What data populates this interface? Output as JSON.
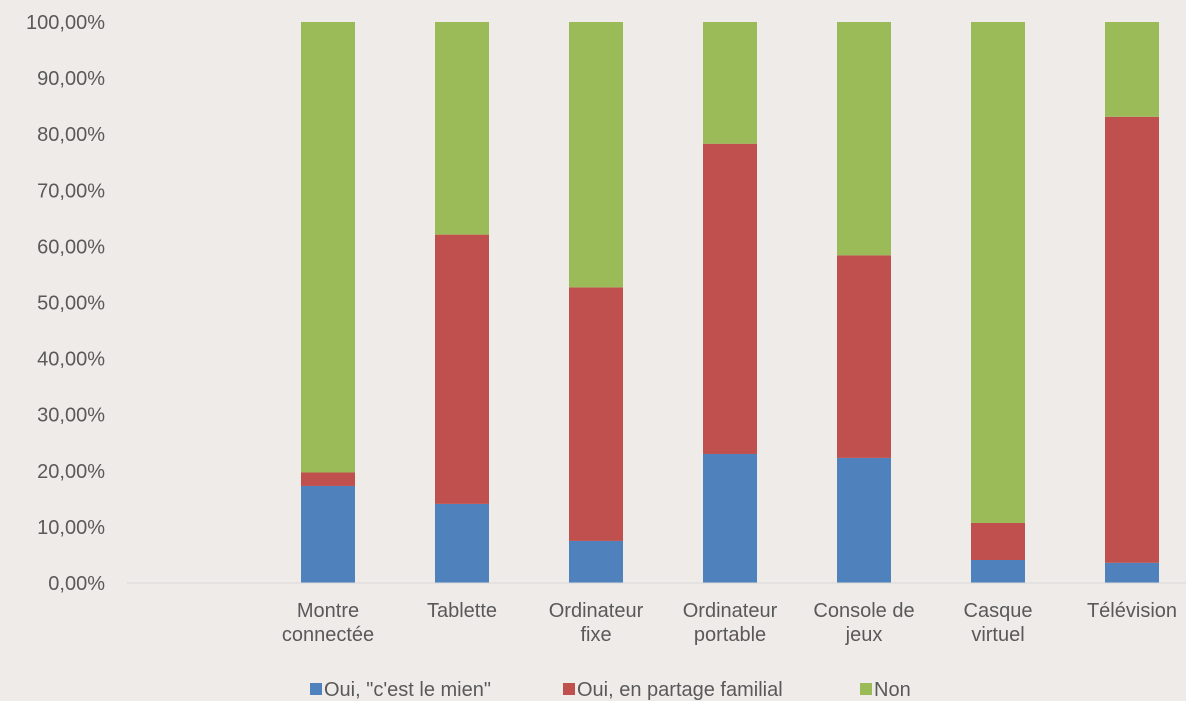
{
  "chart_data": {
    "type": "bar",
    "stacked": true,
    "categories": [
      [
        "Montre",
        "connectée"
      ],
      [
        "Tablette"
      ],
      [
        "Ordinateur",
        "fixe"
      ],
      [
        "Ordinateur",
        "portable"
      ],
      [
        "Console de",
        "jeux"
      ],
      [
        "Casque",
        "virtuel"
      ],
      [
        "Télévision"
      ]
    ],
    "series": [
      {
        "name": "Oui, \"c'est le mien\"",
        "color": "#4f81bd",
        "values": [
          17.3,
          14.1,
          7.5,
          23.0,
          22.3,
          4.1,
          3.6
        ]
      },
      {
        "name": "Oui, en partage familial",
        "color": "#c0504d",
        "values": [
          2.4,
          48.0,
          45.2,
          55.3,
          36.1,
          6.6,
          79.5
        ]
      },
      {
        "name": "Non",
        "color": "#9bbb59",
        "values": [
          80.3,
          37.9,
          47.3,
          21.7,
          41.6,
          89.3,
          16.9
        ]
      }
    ],
    "y_ticks": [
      "0,00%",
      "10,00%",
      "20,00%",
      "30,00%",
      "40,00%",
      "50,00%",
      "60,00%",
      "70,00%",
      "80,00%",
      "90,00%",
      "100,00%"
    ],
    "ylim": [
      0,
      100
    ],
    "title": "",
    "xlabel": "",
    "ylabel": "",
    "grid": false,
    "legend_position": "bottom"
  }
}
